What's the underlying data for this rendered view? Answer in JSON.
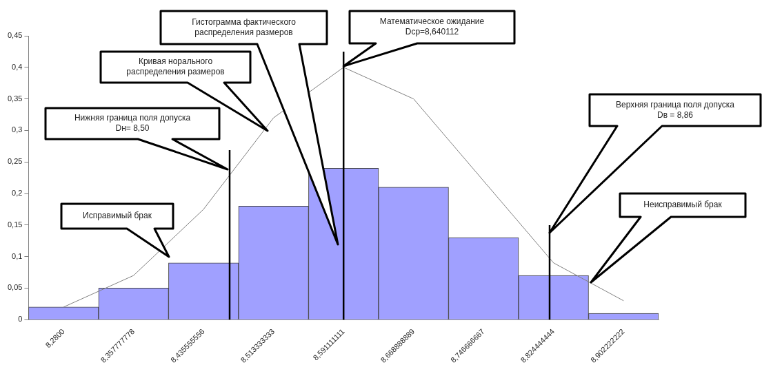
{
  "chart_data": {
    "type": "bar",
    "categories": [
      "8,2800",
      "8,357777778",
      "8,435555556",
      "8,513333333",
      "8,591111111",
      "8,668888889",
      "8,746666667",
      "8,824444444",
      "8,902222222"
    ],
    "series": [
      {
        "type": "bar",
        "color": "#a0a0ff",
        "values": [
          0.02,
          0.05,
          0.09,
          0.18,
          0.24,
          0.21,
          0.13,
          0.07,
          0.01
        ]
      },
      {
        "type": "line",
        "color": "#808080",
        "values": [
          0.02,
          0.07,
          0.175,
          0.32,
          0.4,
          0.35,
          0.22,
          0.09,
          0.03
        ]
      }
    ],
    "ylim": [
      0,
      0.45
    ],
    "yticks": [
      {
        "value": 0,
        "label": "0"
      },
      {
        "value": 0.05,
        "label": "0,05"
      },
      {
        "value": 0.1,
        "label": "0,1"
      },
      {
        "value": 0.15,
        "label": "0,15"
      },
      {
        "value": 0.2,
        "label": "0,2"
      },
      {
        "value": 0.25,
        "label": "0,25"
      },
      {
        "value": 0.3,
        "label": "0,3"
      },
      {
        "value": 0.35,
        "label": "0,35"
      },
      {
        "value": 0.4,
        "label": "0,4"
      },
      {
        "value": 0.45,
        "label": "0,45"
      }
    ],
    "ref_lines": [
      {
        "axis": "x",
        "value": "8,591111111",
        "label": "Математическое ожидание\nDср=8,640112",
        "color": "#000000"
      }
    ],
    "annotations": [
      "Нижняя граница поля допуска\nDн= 8,50",
      "Кривая норального\nраспределения размеров",
      "Гистограмма фактического\nраспределения размеров",
      "Верхняя граница поля допуска\nDв = 8,86",
      "Исправимый брак",
      "Неисправимый брак"
    ],
    "grid": false,
    "legend": false,
    "marker": "none"
  }
}
